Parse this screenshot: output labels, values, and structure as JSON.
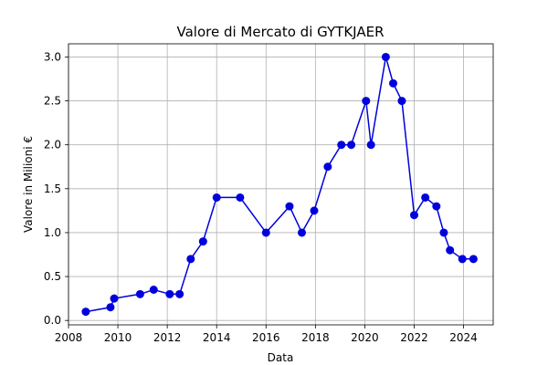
{
  "chart_data": {
    "type": "line",
    "title": "Valore di Mercato di GYTKJAER",
    "xlabel": "Data",
    "ylabel": "Valore in Milioni €",
    "xlim": [
      2008,
      2025.2
    ],
    "ylim": [
      -0.05,
      3.15
    ],
    "x_ticks": [
      2008,
      2010,
      2012,
      2014,
      2016,
      2018,
      2020,
      2022,
      2024
    ],
    "y_ticks": [
      0.0,
      0.5,
      1.0,
      1.5,
      2.0,
      2.5,
      3.0
    ],
    "y_tick_labels": [
      "0.0",
      "0.5",
      "1.0",
      "1.5",
      "2.0",
      "2.5",
      "3.0"
    ],
    "grid": true,
    "series": [
      {
        "color": "#0000dd",
        "marker": "circle",
        "x": [
          2008.7,
          2009.7,
          2009.85,
          2010.9,
          2011.45,
          2012.1,
          2012.5,
          2012.95,
          2013.45,
          2014.0,
          2014.95,
          2016.0,
          2016.95,
          2017.45,
          2017.95,
          2018.5,
          2019.05,
          2019.45,
          2020.05,
          2020.25,
          2020.85,
          2021.15,
          2021.5,
          2022.0,
          2022.45,
          2022.9,
          2023.2,
          2023.45,
          2023.95,
          2024.4
        ],
        "y": [
          0.1,
          0.15,
          0.25,
          0.3,
          0.35,
          0.3,
          0.3,
          0.7,
          0.9,
          1.4,
          1.4,
          1.0,
          1.3,
          1.0,
          1.25,
          1.75,
          2.0,
          2.0,
          2.5,
          2.0,
          3.0,
          2.7,
          2.5,
          1.2,
          1.4,
          1.3,
          1.0,
          0.8,
          0.7,
          0.7
        ]
      }
    ]
  }
}
